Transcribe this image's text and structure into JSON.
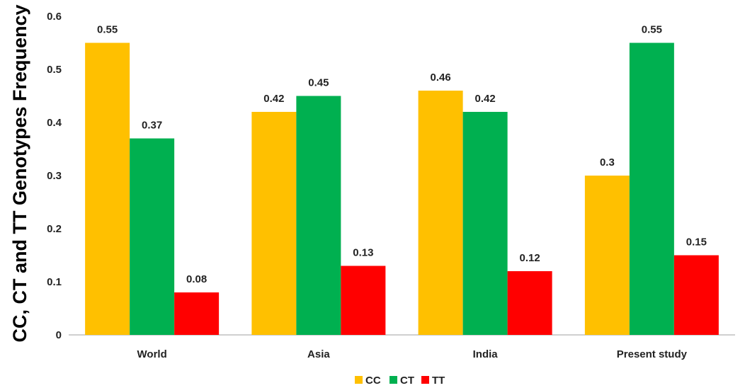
{
  "chart_data": {
    "type": "bar",
    "ylabel": "CC, CT and TT Genotypes Frequency",
    "xlabel": "",
    "categories": [
      "World",
      "Asia",
      "India",
      "Present study"
    ],
    "series": [
      {
        "name": "CC",
        "values": [
          0.55,
          0.42,
          0.46,
          0.3
        ],
        "labels": [
          "0.55",
          "0.42",
          "0.46",
          "0.3"
        ],
        "color": "#FFC000"
      },
      {
        "name": "CT",
        "values": [
          0.37,
          0.45,
          0.42,
          0.55
        ],
        "labels": [
          "0.37",
          "0.45",
          "0.42",
          "0.55"
        ],
        "color": "#00B050"
      },
      {
        "name": "TT",
        "values": [
          0.08,
          0.13,
          0.12,
          0.15
        ],
        "labels": [
          "0.08",
          "0.13",
          "0.12",
          "0.15"
        ],
        "color": "#FF0000"
      }
    ],
    "ylim": [
      0,
      0.6
    ],
    "yticks": [
      "0",
      "0.1",
      "0.2",
      "0.3",
      "0.4",
      "0.5",
      "0.6"
    ],
    "grid": false,
    "legend": "bottom"
  }
}
